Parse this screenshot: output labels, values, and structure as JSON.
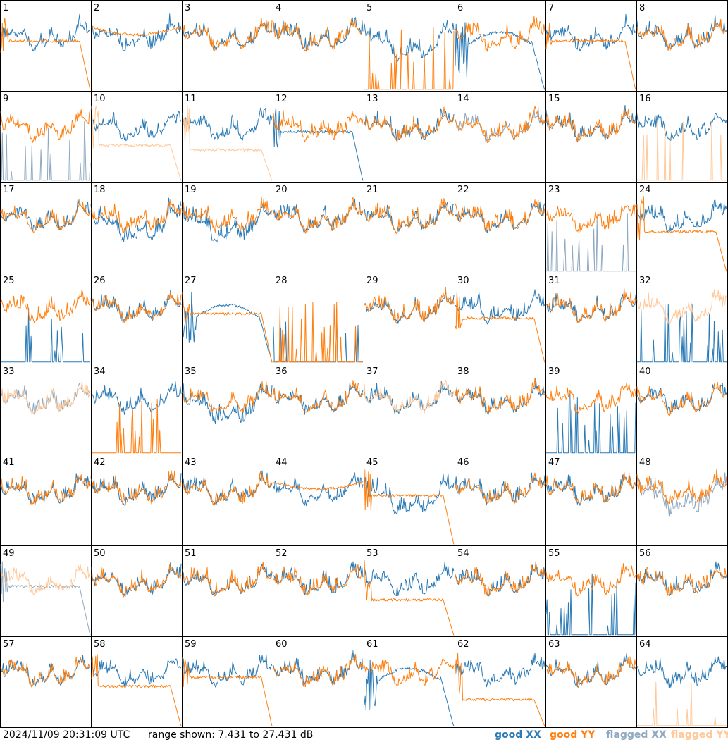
{
  "chart_data": {
    "type": "line",
    "layout": "small-multiples 8x8",
    "x_range": [
      0,
      1
    ],
    "y_range_db": [
      7.431,
      27.431
    ],
    "colors": {
      "good_xx": "#2a7ab5",
      "good_yy": "#ff7f0e",
      "flagged_xx": "#8ea8c0",
      "flagged_yy": "#ffc898"
    },
    "panels": [
      {
        "n": "1",
        "xx": "bowl",
        "yy": "edgefall",
        "yy_level": 0.45,
        "flag": "none"
      },
      {
        "n": "2",
        "xx": "bowl",
        "yy": "flat",
        "flag": "none"
      },
      {
        "n": "3",
        "xx": "bowl",
        "yy": "bowl",
        "flag": "none"
      },
      {
        "n": "4",
        "xx": "bowl",
        "yy": "bowl",
        "flag": "none"
      },
      {
        "n": "5",
        "xx": "deepbowl",
        "yy": "spikes",
        "flag": "none"
      },
      {
        "n": "6",
        "xx": "droop",
        "yy": "bowl",
        "flag": "none"
      },
      {
        "n": "7",
        "xx": "bowl",
        "yy": "edgefall",
        "yy_level": 0.45,
        "flag": "none"
      },
      {
        "n": "8",
        "xx": "bowl",
        "yy": "bowl",
        "flag": "none"
      },
      {
        "n": "9",
        "xx": "spikes",
        "yy": "bowl",
        "flag": "xx"
      },
      {
        "n": "10",
        "xx": "bowl",
        "yy": "edgefall",
        "yy_level": 0.6,
        "flag": "yy"
      },
      {
        "n": "11",
        "xx": "bowl",
        "yy": "edgefall",
        "yy_level": 0.65,
        "flag": "yy"
      },
      {
        "n": "12",
        "xx": "edgefall",
        "yy": "bowl",
        "flag": "none"
      },
      {
        "n": "13",
        "xx": "bowl",
        "yy": "bowl",
        "flag": "none"
      },
      {
        "n": "14",
        "xx": "bowl",
        "yy": "bowl",
        "flag": "xx"
      },
      {
        "n": "15",
        "xx": "bowl",
        "yy": "bowl",
        "flag": "none"
      },
      {
        "n": "16",
        "xx": "bowl",
        "yy": "spikes",
        "flag": "yy"
      },
      {
        "n": "17",
        "xx": "bowl",
        "yy": "bowl",
        "flag": "none"
      },
      {
        "n": "18",
        "xx": "deepbowl",
        "yy": "bowl",
        "flag": "none"
      },
      {
        "n": "19",
        "xx": "deepbowl",
        "yy": "bowl",
        "flag": "none"
      },
      {
        "n": "20",
        "xx": "bowl",
        "yy": "bowl",
        "flag": "none"
      },
      {
        "n": "21",
        "xx": "bowl",
        "yy": "bowl",
        "flag": "none"
      },
      {
        "n": "22",
        "xx": "bowl",
        "yy": "bowl",
        "flag": "none"
      },
      {
        "n": "23",
        "xx": "spikes",
        "yy": "bowl",
        "flag": "xx"
      },
      {
        "n": "24",
        "xx": "bowl",
        "yy": "edgefall",
        "yy_level": 0.55,
        "flag": "none"
      },
      {
        "n": "25",
        "xx": "spikes",
        "yy": "bowl",
        "flag": "none"
      },
      {
        "n": "26",
        "xx": "bowl",
        "yy": "bowl",
        "flag": "none"
      },
      {
        "n": "27",
        "xx": "droop",
        "yy": "edgefall",
        "yy_level": 0.45,
        "flag": "none"
      },
      {
        "n": "28",
        "xx": "spikes",
        "yy": "spikes",
        "flag": "none"
      },
      {
        "n": "29",
        "xx": "bowl",
        "yy": "bowl",
        "flag": "none"
      },
      {
        "n": "30",
        "xx": "bowl",
        "yy": "edgefall",
        "yy_level": 0.5,
        "flag": "none"
      },
      {
        "n": "31",
        "xx": "bowl",
        "yy": "bowl",
        "flag": "none"
      },
      {
        "n": "32",
        "xx": "spikes",
        "yy": "bowl",
        "flag": "yy"
      },
      {
        "n": "33",
        "xx": "bowl",
        "yy": "bowl",
        "flag": "both"
      },
      {
        "n": "34",
        "xx": "bowl",
        "yy": "spikes",
        "flag": "none"
      },
      {
        "n": "35",
        "xx": "deepbowl",
        "yy": "bowl",
        "flag": "none"
      },
      {
        "n": "36",
        "xx": "bowl",
        "yy": "bowl",
        "flag": "none"
      },
      {
        "n": "37",
        "xx": "bowl",
        "yy": "bowl",
        "flag": "yy"
      },
      {
        "n": "38",
        "xx": "bowl",
        "yy": "bowl",
        "flag": "none"
      },
      {
        "n": "39",
        "xx": "spikes",
        "yy": "bowl",
        "flag": "none"
      },
      {
        "n": "40",
        "xx": "bowl",
        "yy": "bowl",
        "flag": "none"
      },
      {
        "n": "41",
        "xx": "bowl",
        "yy": "bowl",
        "flag": "none"
      },
      {
        "n": "42",
        "xx": "bowl",
        "yy": "bowl",
        "flag": "none"
      },
      {
        "n": "43",
        "xx": "bowl",
        "yy": "bowl",
        "flag": "none"
      },
      {
        "n": "44",
        "xx": "bowl",
        "yy": "flat",
        "flag": "none"
      },
      {
        "n": "45",
        "xx": "deepbowl",
        "yy": "edgefall",
        "yy_level": 0.45,
        "flag": "none"
      },
      {
        "n": "46",
        "xx": "bowl",
        "yy": "bowl",
        "flag": "none"
      },
      {
        "n": "47",
        "xx": "bowl",
        "yy": "bowl",
        "flag": "none"
      },
      {
        "n": "48",
        "xx": "deepbowl",
        "yy": "bowl",
        "flag": "xx"
      },
      {
        "n": "49",
        "xx": "edgefall",
        "yy": "bowl",
        "flag": "both"
      },
      {
        "n": "50",
        "xx": "bowl",
        "yy": "bowl",
        "flag": "none"
      },
      {
        "n": "51",
        "xx": "bowl",
        "yy": "bowl",
        "flag": "none"
      },
      {
        "n": "52",
        "xx": "bowl",
        "yy": "bowl",
        "flag": "none"
      },
      {
        "n": "53",
        "xx": "bowl",
        "yy": "edgefall",
        "yy_level": 0.6,
        "flag": "none"
      },
      {
        "n": "54",
        "xx": "bowl",
        "yy": "bowl",
        "flag": "none"
      },
      {
        "n": "55",
        "xx": "spikes",
        "yy": "bowl",
        "flag": "none"
      },
      {
        "n": "56",
        "xx": "bowl",
        "yy": "bowl",
        "flag": "none"
      },
      {
        "n": "57",
        "xx": "bowl",
        "yy": "bowl",
        "flag": "none"
      },
      {
        "n": "58",
        "xx": "bowl",
        "yy": "edgefall",
        "yy_level": 0.55,
        "flag": "none"
      },
      {
        "n": "59",
        "xx": "bowl",
        "yy": "edgefall",
        "yy_level": 0.45,
        "flag": "none"
      },
      {
        "n": "60",
        "xx": "bowl",
        "yy": "bowl",
        "flag": "none"
      },
      {
        "n": "61",
        "xx": "droop",
        "yy": "bowl",
        "flag": "none"
      },
      {
        "n": "62",
        "xx": "bowl",
        "yy": "edgefall",
        "yy_level": 0.7,
        "flag": "none"
      },
      {
        "n": "63",
        "xx": "bowl",
        "yy": "bowl",
        "flag": "none"
      },
      {
        "n": "64",
        "xx": "bowl",
        "yy": "spikes",
        "flag": "yy"
      }
    ]
  },
  "footer": {
    "timestamp": "2024/11/09 20:31:09 UTC",
    "range_text": "range shown: 7.431 to 27.431 dB",
    "legend": [
      {
        "key": "good_xx",
        "label": "good XX"
      },
      {
        "key": "good_yy",
        "label": "good YY"
      },
      {
        "key": "flagged_xx",
        "label": "flagged XX"
      },
      {
        "key": "flagged_yy",
        "label": "flagged YY"
      }
    ]
  }
}
